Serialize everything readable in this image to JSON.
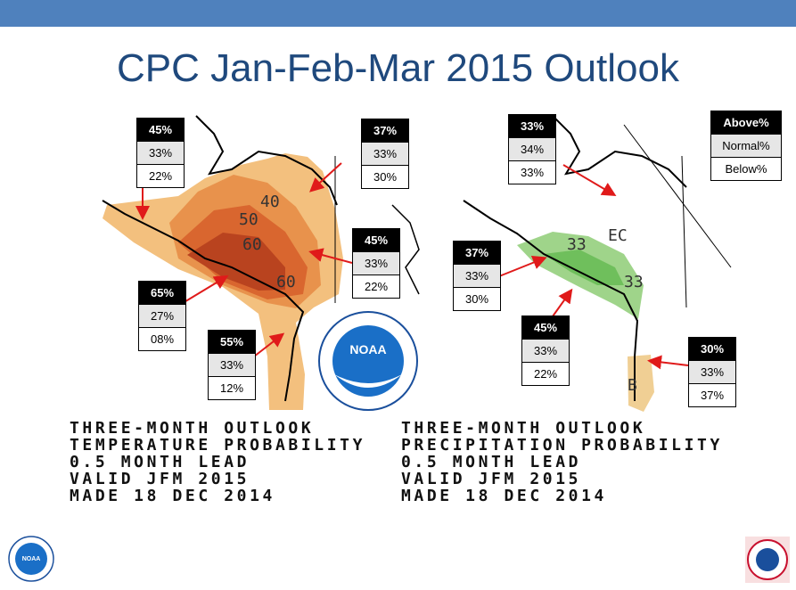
{
  "header": {
    "title": "CPC Jan-Feb-Mar 2015 Outlook"
  },
  "temperature_map": {
    "contour_labels": [
      "40",
      "50",
      "60",
      "60"
    ],
    "boxes": [
      [
        "45%",
        "33%",
        "22%"
      ],
      [
        "37%",
        "33%",
        "30%"
      ],
      [
        "45%",
        "33%",
        "22%"
      ],
      [
        "65%",
        "27%",
        "08%"
      ],
      [
        "55%",
        "33%",
        "12%"
      ]
    ],
    "caption": [
      "THREE-MONTH OUTLOOK",
      "TEMPERATURE PROBABILITY",
      "0.5 MONTH LEAD",
      "VALID JFM 2015",
      "MADE 18 DEC 2014"
    ]
  },
  "precipitation_map": {
    "contour_labels": [
      "33",
      "EC",
      "33",
      "B"
    ],
    "boxes": [
      [
        "33%",
        "34%",
        "33%"
      ],
      [
        "37%",
        "33%",
        "30%"
      ],
      [
        "45%",
        "33%",
        "22%"
      ],
      [
        "30%",
        "33%",
        "37%"
      ]
    ],
    "legend": [
      "Above%",
      "Normal%",
      "Below%"
    ],
    "caption": [
      "THREE-MONTH OUTLOOK",
      "PRECIPITATION PROBABILITY",
      "0.5 MONTH LEAD",
      "VALID JFM 2015",
      "MADE 18 DEC 2014"
    ]
  },
  "logo_text": "NOAA"
}
